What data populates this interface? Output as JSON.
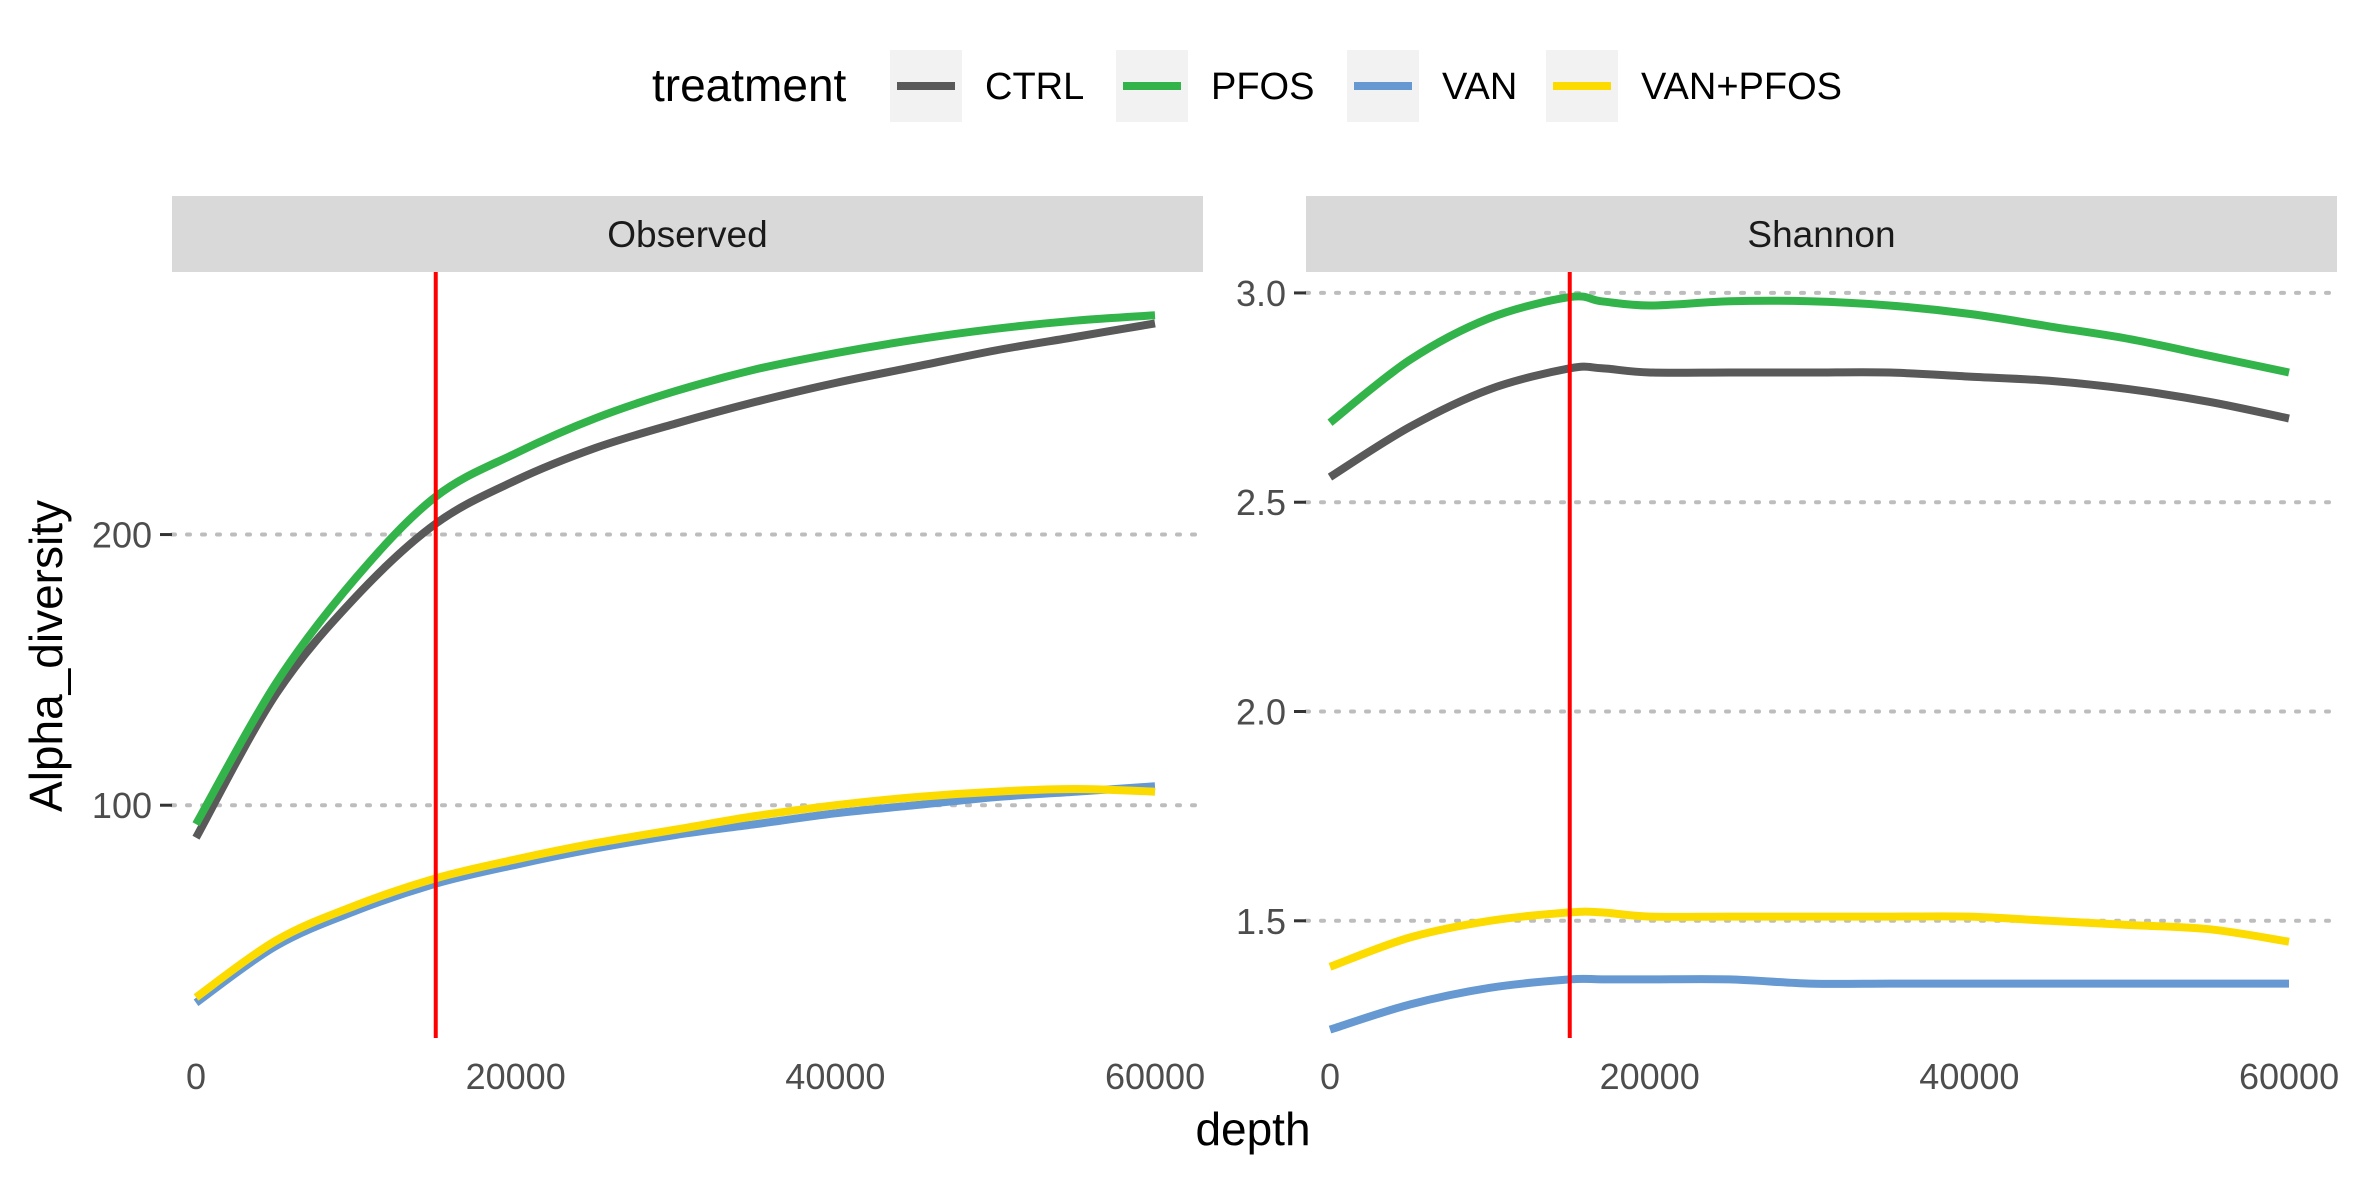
{
  "chart_data": {
    "type": "line",
    "xlabel": "depth",
    "ylabel": "Alpha_diversity",
    "legend": {
      "title": "treatment",
      "position": "top",
      "entries": [
        {
          "name": "CTRL",
          "color": "#595959"
        },
        {
          "name": "PFOS",
          "color": "#33b44a"
        },
        {
          "name": "VAN",
          "color": "#6699d1"
        },
        {
          "name": "VAN+PFOS",
          "color": "#fcdc00"
        }
      ]
    },
    "grid": "major horizontal, dotted",
    "reference_line": {
      "x": 15000,
      "color": "#ff0000"
    },
    "panels": [
      {
        "strip": "Observed",
        "xlim": [
          -1500,
          63000
        ],
        "ylim": [
          14,
          297
        ],
        "xticks": [
          0,
          20000,
          40000,
          60000
        ],
        "xtick_labels": [
          "0",
          "20000",
          "40000",
          "60000"
        ],
        "yticks": [
          100,
          200
        ],
        "ytick_labels": [
          "100",
          "200"
        ],
        "x": [
          0,
          5000,
          10000,
          15000,
          20000,
          25000,
          30000,
          35000,
          40000,
          45000,
          50000,
          55000,
          60000
        ],
        "series": [
          {
            "name": "CTRL",
            "values": [
              88,
              141,
              177,
              204,
              220,
              232,
              241,
              249,
              256,
              262,
              268,
              273,
              278
            ]
          },
          {
            "name": "PFOS",
            "values": [
              93,
              145,
              184,
              214,
              230,
              243,
              253,
              261,
              267,
              272,
              276,
              279,
              281
            ]
          },
          {
            "name": "VAN",
            "values": [
              27,
              48,
              61,
              71,
              78,
              84,
              89,
              93,
              97,
              100,
              103,
              105,
              107
            ]
          },
          {
            "name": "VAN+PFOS",
            "values": [
              29,
              50,
              63,
              73,
              80,
              86,
              91,
              96,
              100,
              103,
              105,
              106,
              105
            ]
          }
        ]
      },
      {
        "strip": "Shannon",
        "xlim": [
          -1500,
          63000
        ],
        "ylim": [
          1.22,
          3.05
        ],
        "xticks": [
          0,
          20000,
          40000,
          60000
        ],
        "xtick_labels": [
          "0",
          "20000",
          "40000",
          "60000"
        ],
        "yticks": [
          1.5,
          2.0,
          2.5,
          3.0
        ],
        "ytick_labels": [
          "1.5",
          "2.0",
          "2.5",
          "3.0"
        ],
        "x": [
          0,
          5000,
          10000,
          15000,
          17000,
          20000,
          25000,
          30000,
          35000,
          40000,
          45000,
          50000,
          55000,
          60000
        ],
        "series": [
          {
            "name": "CTRL",
            "values": [
              2.56,
              2.68,
              2.77,
              2.82,
              2.82,
              2.81,
              2.81,
              2.81,
              2.81,
              2.8,
              2.79,
              2.77,
              2.74,
              2.7
            ]
          },
          {
            "name": "PFOS",
            "values": [
              2.69,
              2.84,
              2.94,
              2.99,
              2.98,
              2.97,
              2.98,
              2.98,
              2.97,
              2.95,
              2.92,
              2.89,
              2.85,
              2.81
            ]
          },
          {
            "name": "VAN",
            "values": [
              1.24,
              1.3,
              1.34,
              1.36,
              1.36,
              1.36,
              1.36,
              1.35,
              1.35,
              1.35,
              1.35,
              1.35,
              1.35,
              1.35
            ]
          },
          {
            "name": "VAN+PFOS",
            "values": [
              1.39,
              1.46,
              1.5,
              1.52,
              1.52,
              1.51,
              1.51,
              1.51,
              1.51,
              1.51,
              1.5,
              1.49,
              1.48,
              1.45
            ]
          }
        ]
      }
    ]
  }
}
